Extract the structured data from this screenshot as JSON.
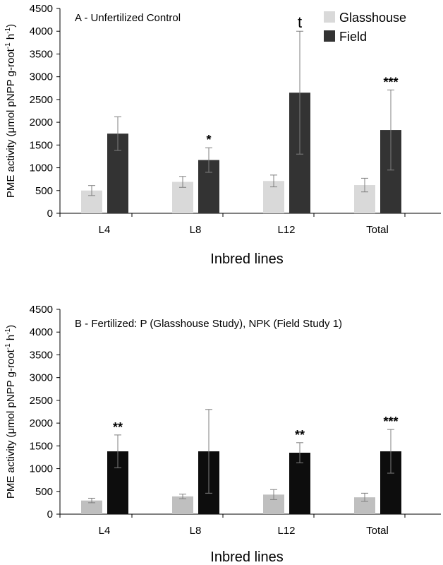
{
  "chart_data": [
    {
      "type": "bar",
      "title": "A - Unfertilized  Control",
      "categories": [
        "L4",
        "L8",
        "L12",
        "Total"
      ],
      "xlabel": "Inbred lines",
      "ylabel": "PME activity (μmol pNPP g-root",
      "ylabel_sup1": "-1",
      "ylabel_mid": " h",
      "ylabel_sup2": "-1",
      "ylabel_end": ")",
      "ylim": [
        0,
        4500
      ],
      "yticks": [
        0,
        500,
        1000,
        1500,
        2000,
        2500,
        3000,
        3500,
        4000,
        4500
      ],
      "legend": [
        "Glasshouse",
        "Field"
      ],
      "series": [
        {
          "name": "Glasshouse",
          "color": "#d9d9d9",
          "values": [
            500,
            690,
            710,
            620
          ],
          "errors": [
            110,
            120,
            130,
            150
          ]
        },
        {
          "name": "Field",
          "color": "#333333",
          "values": [
            1750,
            1170,
            2650,
            1830
          ],
          "errors": [
            370,
            270,
            1350,
            880
          ]
        }
      ],
      "annotations": [
        "",
        "*",
        "t",
        "***"
      ]
    },
    {
      "type": "bar",
      "title": "B - Fertilized: P (Glasshouse Study), NPK (Field Study 1)",
      "categories": [
        "L4",
        "L8",
        "L12",
        "Total"
      ],
      "xlabel": "Inbred lines",
      "ylabel": "PME activity (μmol pNPP g-root",
      "ylabel_sup1": "-1",
      "ylabel_mid": " h",
      "ylabel_sup2": "-1",
      "ylabel_end": ")",
      "ylim": [
        0,
        4500
      ],
      "yticks": [
        0,
        500,
        1000,
        1500,
        2000,
        2500,
        3000,
        3500,
        4000,
        4500
      ],
      "series": [
        {
          "name": "Glasshouse",
          "color": "#bfbfbf",
          "values": [
            300,
            390,
            430,
            370
          ],
          "errors": [
            50,
            50,
            110,
            90
          ]
        },
        {
          "name": "Field",
          "color": "#0d0d0d",
          "values": [
            1380,
            1380,
            1350,
            1380
          ],
          "errors": [
            360,
            920,
            220,
            480
          ]
        }
      ],
      "annotations": [
        "**",
        "",
        "**",
        "***"
      ]
    }
  ]
}
